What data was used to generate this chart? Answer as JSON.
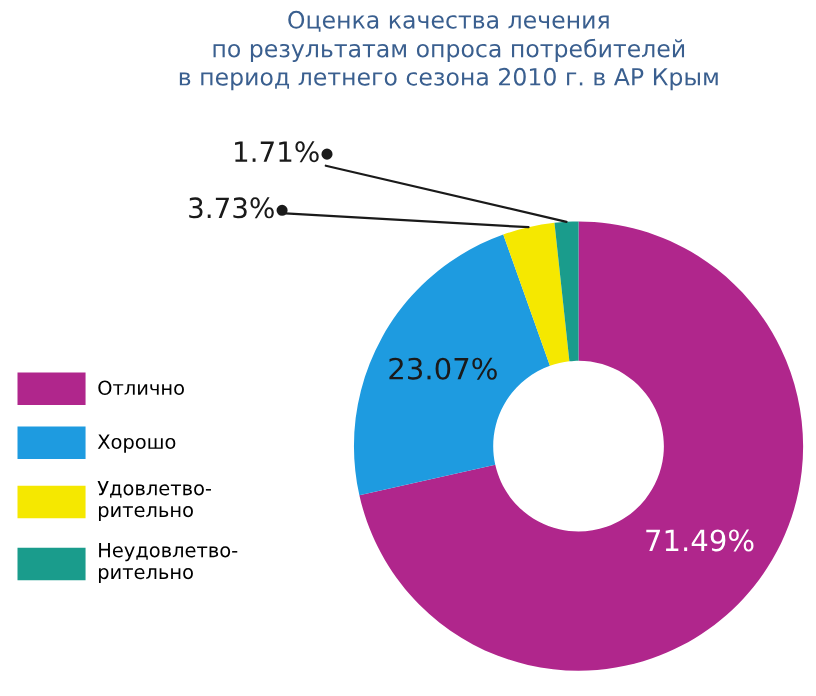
{
  "chart_data": {
    "type": "donut",
    "title": "Оценка качества лечения\nпо результатам опроса потребителей\nв период летнего сезона 2010 г. в АР Крым",
    "categories": [
      "Отлично",
      "Хорошо",
      "Удовлетво-\nрительно",
      "Неудовлетво-\nрительно"
    ],
    "values": [
      71.49,
      23.07,
      3.73,
      1.71
    ],
    "colors": [
      "#b0268c",
      "#1e9be0",
      "#f5e800",
      "#1a9c8c"
    ],
    "value_labels": [
      "71.49%",
      "23.07%",
      "3.73%",
      "1.71%"
    ],
    "legend": "left"
  }
}
